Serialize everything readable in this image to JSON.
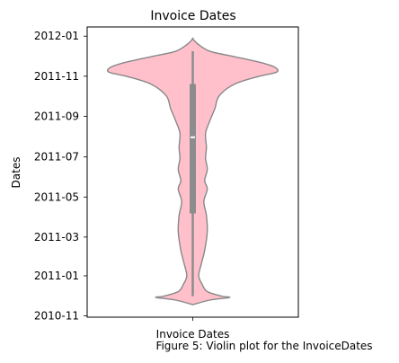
{
  "chart_data": {
    "type": "violin",
    "title": "Invoice Dates",
    "ylabel": "Dates",
    "xlabel": "Invoice Dates",
    "category": "Invoice Dates",
    "y_ticks": [
      "2010-11",
      "2011-01",
      "2011-03",
      "2011-05",
      "2011-07",
      "2011-09",
      "2011-11",
      "2012-01"
    ],
    "ylim": [
      "2010-10-30",
      "2012-01-15"
    ],
    "fill_color": "#ffc0cb",
    "edge_color": "#888888",
    "box_color": "#8c8c8c",
    "median_color": "#ffffff",
    "box": {
      "min": "2010-12-01",
      "q1": "2011-04-06",
      "median": "2011-07-31",
      "q3": "2011-10-20",
      "max": "2011-12-09"
    },
    "density_profile": [
      {
        "date": "2010-11-18",
        "width": 0.0
      },
      {
        "date": "2010-11-25",
        "width": 0.2
      },
      {
        "date": "2010-11-29",
        "width": 0.43
      },
      {
        "date": "2010-12-01",
        "width": 0.34
      },
      {
        "date": "2010-12-08",
        "width": 0.17
      },
      {
        "date": "2010-12-19",
        "width": 0.11
      },
      {
        "date": "2011-01-01",
        "width": 0.07
      },
      {
        "date": "2011-01-19",
        "width": 0.1
      },
      {
        "date": "2011-02-09",
        "width": 0.14
      },
      {
        "date": "2011-03-09",
        "width": 0.17
      },
      {
        "date": "2011-04-03",
        "width": 0.16
      },
      {
        "date": "2011-04-24",
        "width": 0.13
      },
      {
        "date": "2011-05-13",
        "width": 0.17
      },
      {
        "date": "2011-05-26",
        "width": 0.14
      },
      {
        "date": "2011-06-12",
        "width": 0.17
      },
      {
        "date": "2011-06-29",
        "width": 0.15
      },
      {
        "date": "2011-07-16",
        "width": 0.16
      },
      {
        "date": "2011-08-06",
        "width": 0.15
      },
      {
        "date": "2011-08-25",
        "width": 0.2
      },
      {
        "date": "2011-09-13",
        "width": 0.26
      },
      {
        "date": "2011-10-02",
        "width": 0.31
      },
      {
        "date": "2011-10-20",
        "width": 0.49
      },
      {
        "date": "2011-11-01",
        "width": 0.78
      },
      {
        "date": "2011-11-07",
        "width": 0.98
      },
      {
        "date": "2011-11-14",
        "width": 0.97
      },
      {
        "date": "2011-11-21",
        "width": 0.82
      },
      {
        "date": "2011-12-01",
        "width": 0.48
      },
      {
        "date": "2011-12-09",
        "width": 0.2
      },
      {
        "date": "2011-12-20",
        "width": 0.06
      },
      {
        "date": "2011-12-28",
        "width": 0.0
      }
    ]
  },
  "caption": "Figure 5: Violin plot for the InvoiceDates"
}
